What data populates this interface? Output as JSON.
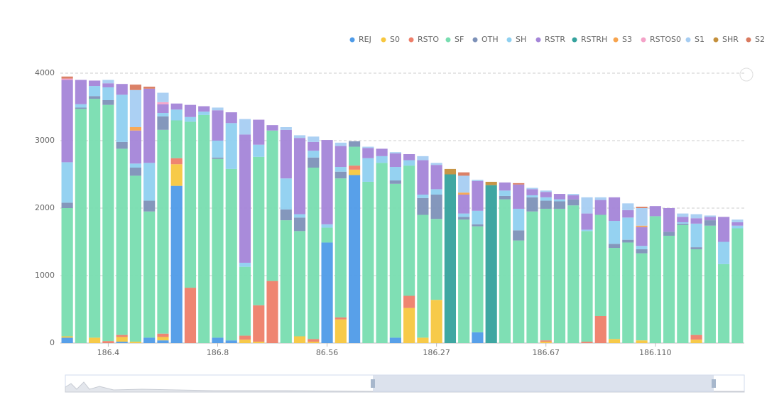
{
  "chart_data": {
    "type": "stacked_bar",
    "categories": [
      null,
      null,
      null,
      "186.4",
      null,
      null,
      null,
      null,
      null,
      null,
      null,
      "186.8",
      null,
      null,
      null,
      null,
      null,
      null,
      null,
      "86.56",
      null,
      null,
      null,
      null,
      null,
      null,
      null,
      "186.27",
      null,
      null,
      null,
      null,
      null,
      null,
      null,
      "186.67",
      null,
      null,
      null,
      null,
      null,
      null,
      null,
      "186.110",
      null,
      null,
      null,
      null,
      null,
      null
    ],
    "ylim": [
      0,
      4000
    ],
    "yticks": [
      0,
      1000,
      2000,
      3000,
      4000
    ],
    "grid": true,
    "series": [
      {
        "name": "REJ",
        "color": "#4f9be8",
        "values": [
          80,
          0,
          0,
          0,
          20,
          0,
          80,
          40,
          2330,
          0,
          0,
          80,
          40,
          0,
          0,
          0,
          0,
          0,
          0,
          1490,
          0,
          2490,
          0,
          0,
          80,
          0,
          0,
          0,
          0,
          0,
          160,
          0,
          0,
          0,
          0,
          0,
          0,
          0,
          0,
          0,
          0,
          0,
          0,
          0,
          0,
          0,
          0,
          0,
          0,
          0
        ]
      },
      {
        "name": "S0",
        "color": "#f7c73f",
        "values": [
          20,
          0,
          80,
          0,
          70,
          20,
          0,
          50,
          320,
          0,
          0,
          0,
          0,
          50,
          20,
          0,
          0,
          100,
          20,
          0,
          350,
          80,
          0,
          0,
          0,
          520,
          80,
          640,
          0,
          0,
          0,
          0,
          0,
          0,
          0,
          20,
          0,
          0,
          0,
          0,
          60,
          0,
          40,
          0,
          0,
          0,
          50,
          0,
          0,
          0
        ]
      },
      {
        "name": "RSTO",
        "color": "#ee7e69",
        "values": [
          0,
          0,
          0,
          30,
          30,
          0,
          0,
          50,
          90,
          820,
          0,
          0,
          0,
          60,
          540,
          920,
          0,
          0,
          40,
          0,
          30,
          60,
          0,
          0,
          0,
          180,
          0,
          0,
          0,
          0,
          0,
          0,
          0,
          0,
          0,
          20,
          0,
          0,
          20,
          400,
          0,
          0,
          0,
          0,
          0,
          0,
          70,
          0,
          0,
          0
        ]
      },
      {
        "name": "SF",
        "color": "#78ddb0",
        "values": [
          1900,
          3470,
          3540,
          3500,
          2760,
          2460,
          1870,
          3020,
          560,
          2460,
          3380,
          2650,
          2540,
          1020,
          2200,
          2230,
          1820,
          1560,
          2540,
          220,
          2060,
          280,
          2390,
          2670,
          2280,
          1930,
          1820,
          1200,
          0,
          1830,
          1570,
          0,
          2130,
          1520,
          1950,
          1950,
          1990,
          2040,
          1640,
          1500,
          1350,
          1490,
          1290,
          1880,
          1590,
          1750,
          1270,
          1740,
          1170,
          1700
        ]
      },
      {
        "name": "OTH",
        "color": "#7d91b8",
        "values": [
          80,
          20,
          40,
          70,
          100,
          120,
          160,
          200,
          0,
          0,
          0,
          20,
          0,
          0,
          0,
          0,
          160,
          200,
          150,
          0,
          100,
          80,
          0,
          0,
          50,
          0,
          250,
          360,
          0,
          40,
          30,
          0,
          50,
          150,
          210,
          120,
          110,
          90,
          0,
          0,
          60,
          40,
          60,
          0,
          60,
          20,
          30,
          80,
          0,
          0
        ]
      },
      {
        "name": "SH",
        "color": "#8fd0f0",
        "values": [
          600,
          50,
          150,
          190,
          700,
          60,
          560,
          50,
          160,
          70,
          50,
          250,
          680,
          60,
          180,
          0,
          460,
          50,
          100,
          50,
          70,
          0,
          350,
          100,
          200,
          80,
          50,
          80,
          0,
          50,
          200,
          0,
          80,
          320,
          30,
          50,
          30,
          0,
          20,
          0,
          340,
          330,
          50,
          0,
          0,
          20,
          350,
          0,
          330,
          40
        ]
      },
      {
        "name": "RSTR",
        "color": "#a485d8",
        "values": [
          1220,
          360,
          80,
          60,
          160,
          490,
          1100,
          130,
          90,
          180,
          80,
          450,
          160,
          1900,
          370,
          80,
          720,
          1130,
          130,
          1250,
          310,
          0,
          150,
          110,
          200,
          90,
          510,
          360,
          0,
          280,
          440,
          0,
          120,
          360,
          90,
          80,
          80,
          60,
          240,
          220,
          350,
          110,
          280,
          150,
          350,
          80,
          80,
          50,
          370,
          50
        ]
      },
      {
        "name": "RSTRH",
        "color": "#35a29d",
        "values": [
          0,
          0,
          0,
          0,
          0,
          0,
          0,
          0,
          0,
          0,
          0,
          0,
          0,
          0,
          0,
          0,
          0,
          0,
          0,
          0,
          0,
          0,
          0,
          0,
          0,
          0,
          0,
          0,
          2500,
          0,
          0,
          2340,
          0,
          0,
          0,
          0,
          0,
          0,
          0,
          0,
          0,
          0,
          0,
          0,
          0,
          0,
          0,
          0,
          0,
          0
        ]
      },
      {
        "name": "S3",
        "color": "#f7a44e",
        "values": [
          0,
          0,
          0,
          0,
          0,
          50,
          0,
          0,
          0,
          0,
          0,
          0,
          0,
          0,
          0,
          0,
          0,
          0,
          0,
          0,
          0,
          0,
          0,
          0,
          0,
          0,
          0,
          0,
          0,
          30,
          0,
          0,
          0,
          0,
          0,
          0,
          0,
          0,
          0,
          0,
          0,
          0,
          20,
          0,
          0,
          0,
          0,
          0,
          0,
          0
        ]
      },
      {
        "name": "RSTOS0",
        "color": "#f4a2c8",
        "values": [
          20,
          0,
          0,
          0,
          0,
          0,
          0,
          30,
          0,
          0,
          0,
          0,
          0,
          0,
          0,
          0,
          0,
          0,
          0,
          0,
          0,
          0,
          0,
          0,
          0,
          0,
          0,
          0,
          0,
          0,
          0,
          0,
          0,
          0,
          0,
          0,
          0,
          0,
          0,
          0,
          0,
          0,
          0,
          0,
          0,
          0,
          0,
          0,
          0,
          0
        ]
      },
      {
        "name": "S1",
        "color": "#a6cdf2",
        "values": [
          0,
          0,
          0,
          50,
          0,
          550,
          0,
          140,
          0,
          0,
          0,
          40,
          0,
          230,
          0,
          0,
          40,
          40,
          80,
          0,
          50,
          0,
          20,
          0,
          20,
          0,
          60,
          30,
          0,
          250,
          20,
          0,
          0,
          0,
          20,
          20,
          0,
          20,
          240,
          40,
          0,
          100,
          260,
          0,
          0,
          50,
          60,
          20,
          0,
          40
        ]
      },
      {
        "name": "SHR",
        "color": "#c4903c",
        "values": [
          0,
          0,
          0,
          0,
          0,
          0,
          0,
          0,
          0,
          0,
          0,
          0,
          0,
          0,
          0,
          0,
          0,
          0,
          0,
          0,
          0,
          0,
          0,
          0,
          0,
          0,
          0,
          0,
          80,
          0,
          0,
          50,
          0,
          0,
          0,
          0,
          0,
          0,
          0,
          0,
          0,
          0,
          0,
          0,
          0,
          0,
          0,
          0,
          0,
          0
        ]
      },
      {
        "name": "S2",
        "color": "#d97a5f",
        "values": [
          30,
          0,
          0,
          0,
          0,
          80,
          30,
          0,
          0,
          0,
          0,
          0,
          0,
          0,
          0,
          0,
          0,
          0,
          0,
          0,
          0,
          0,
          0,
          0,
          0,
          0,
          0,
          0,
          0,
          50,
          0,
          0,
          0,
          20,
          0,
          0,
          0,
          0,
          0,
          0,
          0,
          0,
          20,
          0,
          0,
          0,
          0,
          0,
          0,
          0
        ]
      }
    ]
  }
}
